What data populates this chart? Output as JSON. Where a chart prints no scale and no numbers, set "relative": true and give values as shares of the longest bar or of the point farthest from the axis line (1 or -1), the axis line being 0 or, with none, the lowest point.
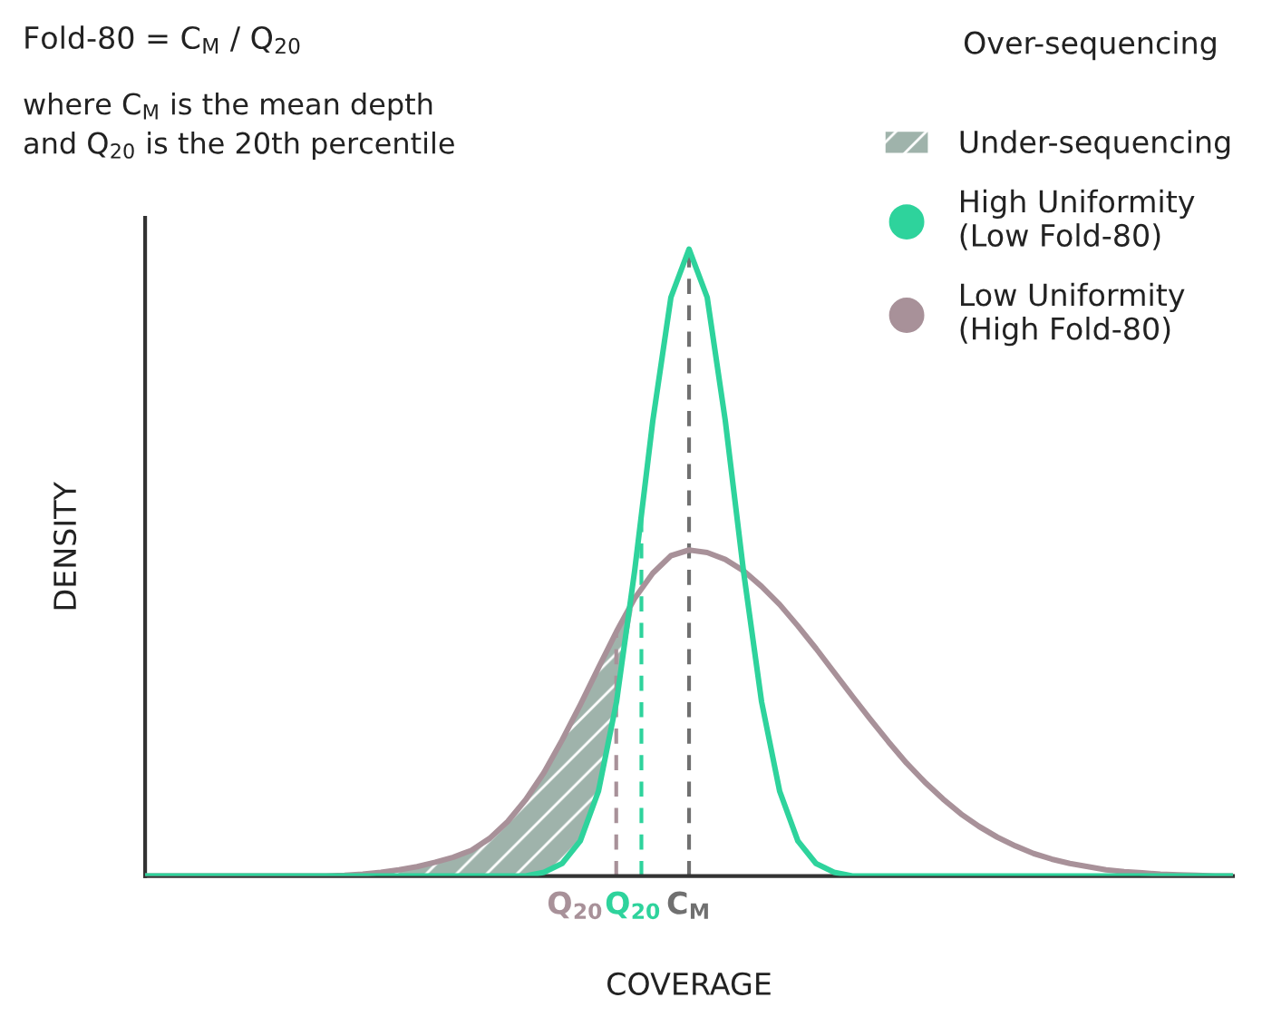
{
  "chart_data": {
    "type": "line",
    "title": "Fold-80 = C$_{M}$ / Q$_{20}$",
    "subtitle": "where C$_{M}$ is the mean depth\nand Q$_{20}$ is the 20th percentile",
    "xlabel": "COVERAGE",
    "ylabel": "DENSITY",
    "relative": true,
    "tick_labels": false,
    "legend": "top right",
    "marker": "none",
    "line_style": "solid",
    "categories": [
      null,
      null,
      null,
      null,
      null,
      null,
      null,
      null,
      null,
      null,
      null,
      null,
      null,
      null,
      null,
      null,
      null,
      null,
      null,
      null,
      null,
      null,
      null,
      null,
      null,
      null,
      null,
      null,
      null,
      null,
      null,
      null,
      null,
      null,
      null,
      null,
      null,
      null,
      null,
      null,
      null,
      null,
      null,
      null,
      null,
      null,
      null,
      null,
      null,
      null,
      null,
      null,
      null,
      null,
      null,
      null,
      null,
      null,
      null,
      null,
      null
    ],
    "annotations": [
      "Over-sequencing",
      "Q$_{20}$",
      "Q$_{20}$",
      "C$_{M}$"
    ],
    "series": [
      {
        "name": "Under-sequencing",
        "type": "area",
        "color": "#9fb3ab",
        "values": [
          null,
          null,
          null,
          null,
          null,
          null,
          null,
          null,
          null,
          null,
          0.0,
          0.001,
          0.003,
          0.006,
          0.01,
          0.015,
          0.022,
          0.03,
          0.041,
          0.06,
          0.087,
          0.122,
          0.165,
          0.217,
          0.273,
          0.332,
          0.39,
          0.443,
          null,
          null,
          null,
          null,
          null,
          null,
          null,
          null,
          null,
          null,
          null,
          null,
          null,
          null,
          null,
          null,
          null,
          null,
          null,
          null,
          null,
          null,
          null,
          null,
          null,
          null,
          null,
          null,
          null,
          null,
          null,
          null,
          null
        ]
      },
      {
        "name": "High Uniformity\n(Low Fold-80)",
        "color": "#2ed39c",
        "values": [
          0,
          0,
          0,
          0,
          0,
          0,
          0,
          0,
          0,
          0,
          0,
          0,
          0,
          0,
          0,
          0,
          0,
          0,
          0,
          0,
          0,
          0,
          0.006,
          0.02,
          0.056,
          0.135,
          0.278,
          0.487,
          0.726,
          0.923,
          1,
          0.923,
          0.726,
          0.487,
          0.278,
          0.135,
          0.056,
          0.02,
          0.006,
          0,
          0,
          0,
          0,
          0,
          0,
          0,
          0,
          0,
          0,
          0,
          0,
          0,
          0,
          0,
          0,
          0,
          0,
          0,
          0,
          0,
          0
        ]
      },
      {
        "name": "Low Uniformity\n(High Fold-80)",
        "color": "#a89199",
        "values": [
          0,
          0,
          0,
          0,
          0,
          0,
          0,
          0,
          0,
          0,
          0,
          0.001,
          0.003,
          0.006,
          0.01,
          0.015,
          0.022,
          0.03,
          0.041,
          0.06,
          0.087,
          0.122,
          0.165,
          0.217,
          0.273,
          0.332,
          0.39,
          0.443,
          0.483,
          0.511,
          0.52,
          0.516,
          0.505,
          0.487,
          0.462,
          0.433,
          0.399,
          0.363,
          0.325,
          0.287,
          0.25,
          0.214,
          0.18,
          0.15,
          0.123,
          0.099,
          0.079,
          0.062,
          0.048,
          0.036,
          0.027,
          0.02,
          0.015,
          0.01,
          0.007,
          0.005,
          0.003,
          0.002,
          0.001,
          0,
          0
        ]
      }
    ]
  }
}
